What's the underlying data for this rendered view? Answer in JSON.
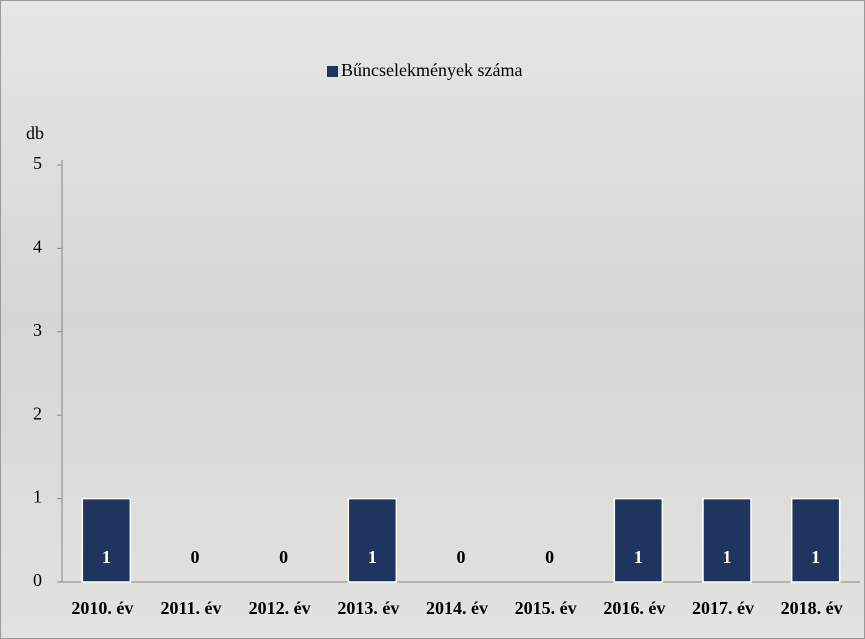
{
  "chart_data": {
    "type": "bar",
    "categories": [
      "2010. év",
      "2011. év",
      "2012. év",
      "2013. év",
      "2014. év",
      "2015. év",
      "2016. év",
      "2017. év",
      "2018. év"
    ],
    "series": [
      {
        "name": "Bűncselekmények száma",
        "color": "#1f3560",
        "values": [
          1,
          0,
          0,
          1,
          0,
          0,
          1,
          1,
          1
        ]
      }
    ],
    "y_label": "db",
    "ylim": [
      0,
      5
    ],
    "yticks": [
      0,
      1,
      2,
      3,
      4,
      5
    ],
    "legend": "top"
  }
}
